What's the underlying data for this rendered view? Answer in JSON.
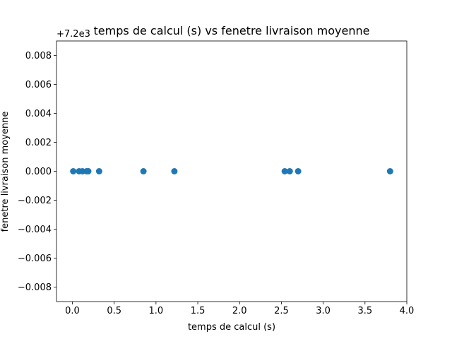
{
  "chart_data": {
    "type": "scatter",
    "title": "temps de calcul (s)   vs   fenetre livraison moyenne",
    "xlabel": "temps de calcul (s)",
    "ylabel": "fenetre livraison moyenne",
    "y_offset_label": "+7.2e3",
    "xlim": [
      -0.19,
      4.0
    ],
    "ylim": [
      -0.009,
      0.009
    ],
    "x_ticks": [
      0.0,
      0.5,
      1.0,
      1.5,
      2.0,
      2.5,
      3.0,
      3.5,
      4.0
    ],
    "x_tick_labels": [
      "0.0",
      "0.5",
      "1.0",
      "1.5",
      "2.0",
      "2.5",
      "3.0",
      "3.5",
      "4.0"
    ],
    "y_ticks": [
      -0.008,
      -0.006,
      -0.004,
      -0.002,
      0.0,
      0.002,
      0.004,
      0.006,
      0.008
    ],
    "y_tick_labels": [
      "−0.008",
      "−0.006",
      "−0.004",
      "−0.002",
      "0.000",
      "0.002",
      "0.004",
      "0.006",
      "0.008"
    ],
    "grid": false,
    "marker_color": "#1f77b4",
    "points": [
      {
        "x": 0.01,
        "y": 0.0
      },
      {
        "x": 0.08,
        "y": 0.0
      },
      {
        "x": 0.12,
        "y": 0.0
      },
      {
        "x": 0.17,
        "y": 0.0
      },
      {
        "x": 0.19,
        "y": 0.0
      },
      {
        "x": 0.32,
        "y": 0.0
      },
      {
        "x": 0.85,
        "y": 0.0
      },
      {
        "x": 1.22,
        "y": 0.0
      },
      {
        "x": 2.54,
        "y": 0.0
      },
      {
        "x": 2.6,
        "y": 0.0
      },
      {
        "x": 2.7,
        "y": 0.0
      },
      {
        "x": 3.8,
        "y": 0.0
      }
    ]
  }
}
